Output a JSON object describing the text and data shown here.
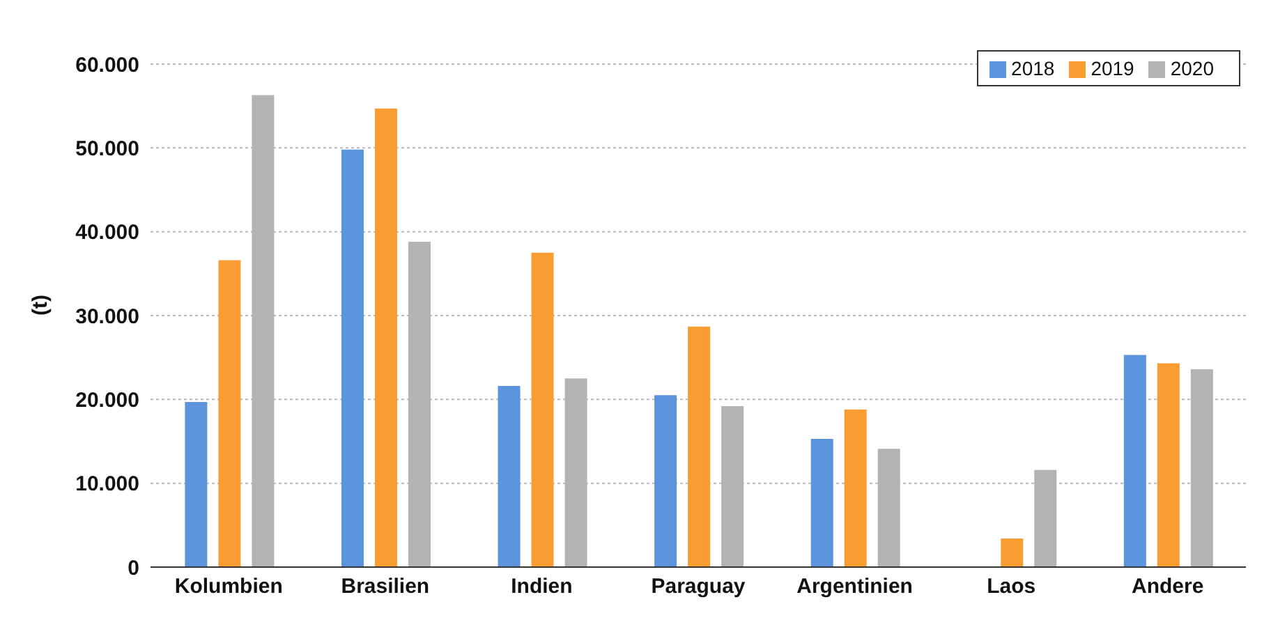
{
  "chart_data": {
    "type": "bar",
    "ylabel": "(t)",
    "categories": [
      "Kolumbien",
      "Brasilien",
      "Indien",
      "Paraguay",
      "Argentinien",
      "Laos",
      "Andere"
    ],
    "series": [
      {
        "name": "2018",
        "color": "#5b93dd",
        "values": [
          19700,
          49800,
          21600,
          20500,
          15300,
          null,
          25300
        ]
      },
      {
        "name": "2019",
        "color": "#f99d33",
        "values": [
          36600,
          54700,
          37500,
          28700,
          18800,
          3400,
          24300
        ]
      },
      {
        "name": "2020",
        "color": "#b3b3b3",
        "values": [
          56300,
          38800,
          22500,
          19200,
          14100,
          11600,
          23600
        ]
      }
    ],
    "ylim": [
      0,
      60000
    ],
    "yticks": [
      {
        "value": 0,
        "label": "0"
      },
      {
        "value": 10000,
        "label": "10.000"
      },
      {
        "value": 20000,
        "label": "20.000"
      },
      {
        "value": 30000,
        "label": "30.000"
      },
      {
        "value": 40000,
        "label": "40.000"
      },
      {
        "value": 50000,
        "label": "50.000"
      },
      {
        "value": 60000,
        "label": "60.000"
      }
    ],
    "grid": "y",
    "legend": "top right"
  }
}
